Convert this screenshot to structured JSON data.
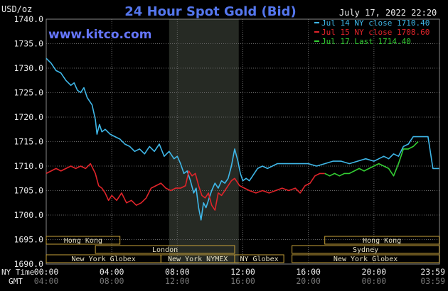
{
  "header": {
    "title": "24 Hour Spot Gold (Bid)",
    "unit": "USD/oz",
    "timestamp": "July 17, 2022 22:20",
    "brand": "www.kitco.com"
  },
  "legend": [
    {
      "label": "Jul 14 NY close 1710.40",
      "color": "#3fb7e8"
    },
    {
      "label": "Jul 15 NY close 1708.60",
      "color": "#e0242a"
    },
    {
      "label": "Jul 17 Last 1714.40",
      "color": "#33cc33"
    }
  ],
  "axis_titles": {
    "ny": "NY Time",
    "gmt": "GMT"
  },
  "x_ticks_ny": [
    "00:00",
    "04:00",
    "08:00",
    "12:00",
    "16:00",
    "20:00",
    "23:59"
  ],
  "x_ticks_gmt": [
    "04:00",
    "08:00",
    "12:00",
    "16:00",
    "20:00",
    "00:00",
    "03:59"
  ],
  "y_ticks": [
    "1740.0",
    "1735.0",
    "1730.0",
    "1725.0",
    "1720.0",
    "1715.0",
    "1710.0",
    "1705.0",
    "1700.0",
    "1695.0",
    "1690.0"
  ],
  "markets": [
    {
      "name": "Hong Kong",
      "start": 0.0,
      "end": 4.5,
      "row": 0
    },
    {
      "name": "London",
      "start": 3.0,
      "end": 11.5,
      "row": 1
    },
    {
      "name": "New York Globex",
      "start": 0.0,
      "end": 7.0,
      "row": 2
    },
    {
      "name": "New York NYMEX",
      "start": 7.0,
      "end": 11.5,
      "row": 2
    },
    {
      "name": "NY Globex",
      "start": 11.5,
      "end": 14.5,
      "row": 2
    },
    {
      "name": "Hong Kong",
      "start": 17.0,
      "end": 23.98,
      "row": 0
    },
    {
      "name": "Sydney",
      "start": 15.0,
      "end": 23.98,
      "row": 1
    },
    {
      "name": "New York Globex",
      "start": 15.0,
      "end": 23.98,
      "row": 2
    }
  ],
  "colors": {
    "background": "#000000",
    "grid": "#666666",
    "shade": "#262a24",
    "axis_text": "#e8e8e8",
    "title": "#5577ee",
    "brand": "#6677ff",
    "market_box_fill": "#e6e0c2",
    "market_box_border": "#c8a23a"
  },
  "chart_data": {
    "type": "line",
    "title": "24 Hour Spot Gold (Bid)",
    "ylabel": "USD/oz",
    "xlabel": "NY Time",
    "ylim": [
      1690,
      1740
    ],
    "xlim": [
      0,
      24
    ],
    "grid": true,
    "shaded_region": [
      7.5,
      11.75
    ],
    "legend_position": "top-right",
    "series": [
      {
        "name": "Jul 14 NY close 1710.40",
        "color": "#3fb7e8",
        "x": [
          0.0,
          0.3,
          0.6,
          0.9,
          1.2,
          1.5,
          1.7,
          1.9,
          2.1,
          2.3,
          2.5,
          2.8,
          3.0,
          3.1,
          3.25,
          3.4,
          3.6,
          3.9,
          4.2,
          4.5,
          4.8,
          5.1,
          5.4,
          5.7,
          6.0,
          6.3,
          6.6,
          6.9,
          7.2,
          7.5,
          7.8,
          8.0,
          8.2,
          8.4,
          8.6,
          8.8,
          9.0,
          9.15,
          9.3,
          9.45,
          9.6,
          9.75,
          9.9,
          10.1,
          10.3,
          10.5,
          10.7,
          10.9,
          11.1,
          11.3,
          11.5,
          11.7,
          11.85,
          12.0,
          12.2,
          12.4,
          12.6,
          12.9,
          13.2,
          13.5,
          13.8,
          14.1,
          14.5,
          15.0,
          15.5,
          16.0,
          16.5,
          17.0,
          17.5,
          18.0,
          18.5,
          19.0,
          19.5,
          20.0,
          20.3,
          20.6,
          20.9,
          21.2,
          21.5,
          21.8,
          22.1,
          22.4,
          22.7,
          23.0,
          23.3,
          23.6,
          23.98
        ],
        "values": [
          1732.0,
          1731.0,
          1729.5,
          1729.0,
          1727.5,
          1726.5,
          1727.0,
          1725.5,
          1725.0,
          1726.0,
          1724.0,
          1722.5,
          1719.5,
          1716.5,
          1718.5,
          1717.0,
          1717.5,
          1716.5,
          1716.0,
          1715.5,
          1714.5,
          1714.0,
          1713.0,
          1713.5,
          1712.5,
          1714.0,
          1713.0,
          1714.5,
          1712.0,
          1713.0,
          1711.5,
          1712.0,
          1710.5,
          1708.5,
          1709.0,
          1707.0,
          1704.5,
          1705.5,
          1701.5,
          1699.0,
          1702.5,
          1701.5,
          1703.0,
          1705.0,
          1706.5,
          1705.5,
          1707.0,
          1706.5,
          1707.5,
          1710.0,
          1713.5,
          1711.0,
          1708.5,
          1707.0,
          1707.5,
          1707.0,
          1708.0,
          1709.5,
          1710.0,
          1709.5,
          1710.0,
          1710.5,
          1710.5,
          1710.5,
          1710.5,
          1710.5,
          1710.0,
          1710.5,
          1711.0,
          1711.0,
          1710.5,
          1711.0,
          1711.5,
          1711.0,
          1711.5,
          1712.0,
          1711.5,
          1712.5,
          1712.0,
          1714.0,
          1714.5,
          1716.0,
          1716.0,
          1716.0,
          1716.0,
          1709.5,
          1709.5
        ]
      },
      {
        "name": "Jul 15 NY close 1708.60",
        "color": "#e0242a",
        "x": [
          0.0,
          0.3,
          0.6,
          0.9,
          1.2,
          1.5,
          1.8,
          2.1,
          2.4,
          2.7,
          3.0,
          3.2,
          3.4,
          3.6,
          3.8,
          4.0,
          4.3,
          4.6,
          4.9,
          5.2,
          5.5,
          5.8,
          6.1,
          6.4,
          6.7,
          7.0,
          7.3,
          7.6,
          7.9,
          8.2,
          8.5,
          8.7,
          8.9,
          9.1,
          9.3,
          9.5,
          9.7,
          9.9,
          10.1,
          10.3,
          10.5,
          10.7,
          10.9,
          11.1,
          11.3,
          11.5,
          11.8,
          12.1,
          12.4,
          12.8,
          13.2,
          13.6,
          14.0,
          14.4,
          14.8,
          15.2,
          15.5,
          15.8,
          16.1,
          16.4,
          16.7,
          17.0
        ],
        "values": [
          1708.5,
          1709.0,
          1709.5,
          1709.0,
          1709.5,
          1710.0,
          1709.5,
          1710.0,
          1709.5,
          1710.5,
          1708.5,
          1706.0,
          1705.5,
          1704.5,
          1703.0,
          1704.0,
          1703.0,
          1704.5,
          1702.5,
          1703.0,
          1702.0,
          1702.5,
          1703.5,
          1705.5,
          1706.0,
          1706.5,
          1705.5,
          1705.0,
          1705.5,
          1705.5,
          1706.0,
          1709.0,
          1708.0,
          1708.5,
          1706.0,
          1704.0,
          1703.5,
          1704.5,
          1702.0,
          1701.0,
          1704.5,
          1704.0,
          1705.0,
          1706.0,
          1707.0,
          1707.5,
          1706.0,
          1705.5,
          1705.0,
          1704.5,
          1705.0,
          1704.5,
          1705.0,
          1705.5,
          1705.0,
          1705.5,
          1704.5,
          1706.0,
          1706.5,
          1708.0,
          1708.5,
          1708.5
        ]
      },
      {
        "name": "Jul 17 Last 1714.40",
        "color": "#33cc33",
        "x": [
          17.0,
          17.3,
          17.6,
          17.9,
          18.2,
          18.5,
          18.8,
          19.1,
          19.4,
          19.7,
          20.0,
          20.3,
          20.6,
          20.9,
          21.2,
          21.5,
          21.8,
          22.1,
          22.4,
          22.7
        ],
        "values": [
          1708.5,
          1708.0,
          1708.5,
          1708.0,
          1708.5,
          1708.5,
          1709.0,
          1709.5,
          1709.0,
          1709.5,
          1710.0,
          1710.5,
          1710.0,
          1709.5,
          1708.0,
          1710.5,
          1713.5,
          1713.5,
          1714.0,
          1715.0
        ]
      }
    ]
  }
}
